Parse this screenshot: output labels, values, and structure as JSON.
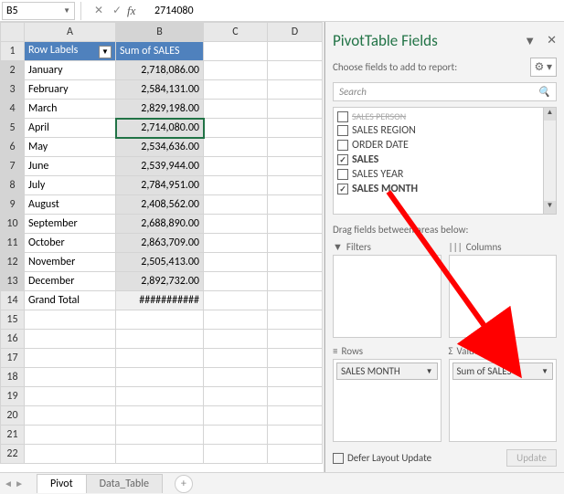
{
  "formula_bar": {
    "cell_ref": "B5",
    "value": "2714080"
  },
  "columns": [
    "A",
    "B",
    "C",
    "D"
  ],
  "pivot_header": {
    "row_labels": "Row Labels",
    "sum_col": "Sum of SALES"
  },
  "rows": [
    {
      "n": 1
    },
    {
      "n": 2,
      "a": "January",
      "b": "2,718,086.00"
    },
    {
      "n": 3,
      "a": "February",
      "b": "2,584,131.00"
    },
    {
      "n": 4,
      "a": "March",
      "b": "2,829,198.00"
    },
    {
      "n": 5,
      "a": "April",
      "b": "2,714,080.00"
    },
    {
      "n": 6,
      "a": "May",
      "b": "2,534,636.00"
    },
    {
      "n": 7,
      "a": "June",
      "b": "2,539,944.00"
    },
    {
      "n": 8,
      "a": "July",
      "b": "2,784,951.00"
    },
    {
      "n": 9,
      "a": "August",
      "b": "2,408,562.00"
    },
    {
      "n": 10,
      "a": "September",
      "b": "2,688,890.00"
    },
    {
      "n": 11,
      "a": "October",
      "b": "2,863,709.00"
    },
    {
      "n": 12,
      "a": "November",
      "b": "2,505,413.00"
    },
    {
      "n": 13,
      "a": "December",
      "b": "2,892,732.00"
    },
    {
      "n": 14,
      "a": "Grand Total",
      "b": "###########",
      "grand": true
    },
    {
      "n": 15
    },
    {
      "n": 16
    },
    {
      "n": 17
    },
    {
      "n": 18
    },
    {
      "n": 19
    },
    {
      "n": 20
    },
    {
      "n": 21
    },
    {
      "n": 22
    }
  ],
  "selected_range": {
    "col": "B",
    "rows": [
      2,
      13
    ],
    "active_row": 5
  },
  "panel": {
    "title": "PivotTable Fields",
    "subtitle": "Choose fields to add to report:",
    "search_placeholder": "Search",
    "fields": [
      {
        "label": "SALES PERSON",
        "checked": false,
        "cut": true
      },
      {
        "label": "SALES REGION",
        "checked": false
      },
      {
        "label": "ORDER DATE",
        "checked": false
      },
      {
        "label": "SALES",
        "checked": true,
        "bold": true
      },
      {
        "label": "SALES YEAR",
        "checked": false
      },
      {
        "label": "SALES MONTH",
        "checked": true,
        "bold": true
      }
    ],
    "drag_hint": "Drag fields between areas below:",
    "areas": {
      "filters": {
        "label": "Filters",
        "items": []
      },
      "columns": {
        "label": "Columns",
        "items": []
      },
      "rows": {
        "label": "Rows",
        "items": [
          "SALES MONTH"
        ]
      },
      "values": {
        "label": "Values",
        "items": [
          "Sum of SALES"
        ]
      }
    },
    "defer_label": "Defer Layout Update",
    "update_label": "Update"
  },
  "tabs": {
    "active": "Pivot",
    "other": "Data_Table"
  },
  "colors": {
    "accent": "#217346",
    "header_bg": "#4f81bd",
    "arrow": "#ff0000"
  }
}
